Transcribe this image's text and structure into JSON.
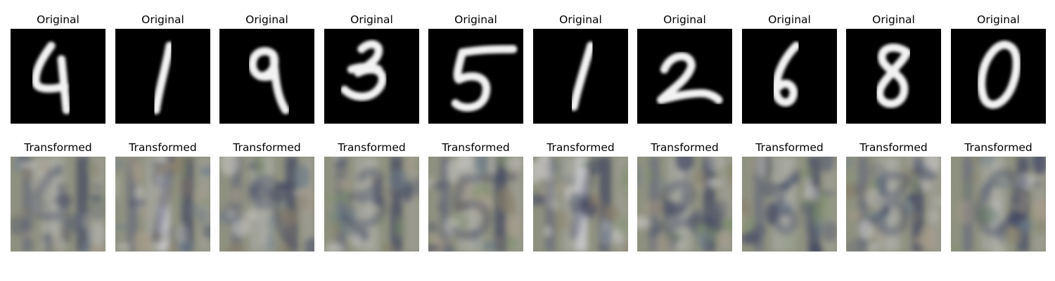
{
  "panels": [
    {
      "top_title": "Original",
      "bottom_title": "Transformed",
      "digit": "4"
    },
    {
      "top_title": "Original",
      "bottom_title": "Transformed",
      "digit": "1"
    },
    {
      "top_title": "Original",
      "bottom_title": "Transformed",
      "digit": "9"
    },
    {
      "top_title": "Original",
      "bottom_title": "Transformed",
      "digit": "3"
    },
    {
      "top_title": "Original",
      "bottom_title": "Transformed",
      "digit": "5"
    },
    {
      "top_title": "Original",
      "bottom_title": "Transformed",
      "digit": "1"
    },
    {
      "top_title": "Original",
      "bottom_title": "Transformed",
      "digit": "2"
    },
    {
      "top_title": "Original",
      "bottom_title": "Transformed",
      "digit": "6"
    },
    {
      "top_title": "Original",
      "bottom_title": "Transformed",
      "digit": "8"
    },
    {
      "top_title": "Original",
      "bottom_title": "Transformed",
      "digit": "0"
    }
  ],
  "colors": {
    "digit_background": "#000000",
    "digit_stroke": "#f2f2f2",
    "transformed_base": "#8f9180",
    "transformed_dark": "#3a3f5c",
    "transformed_light": "#c8c8cc"
  }
}
